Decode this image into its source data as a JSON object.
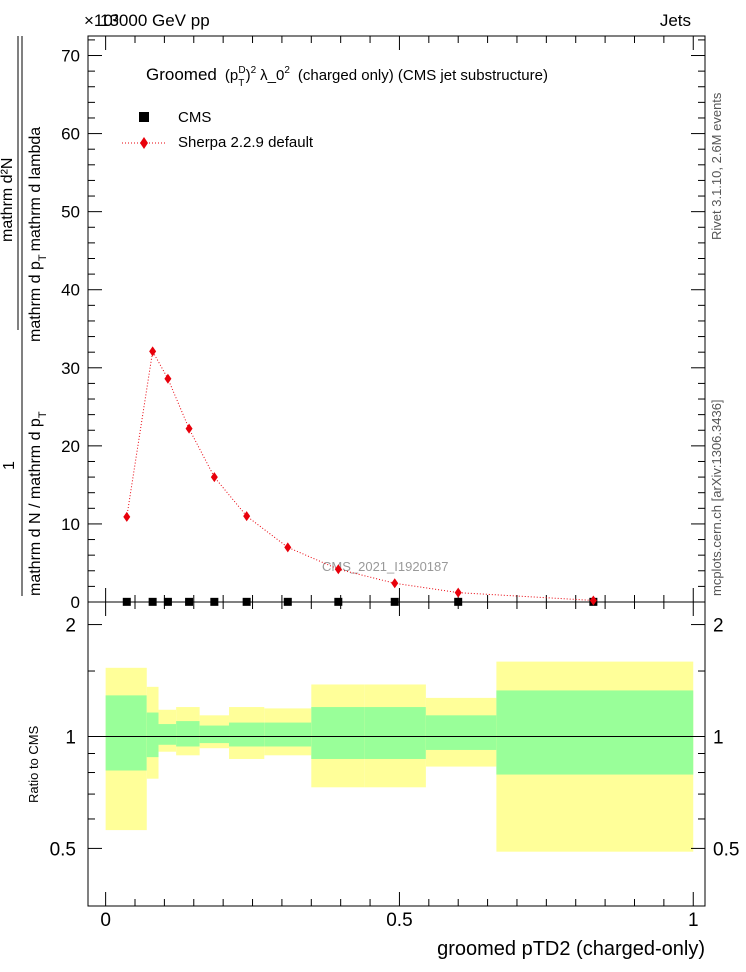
{
  "header": {
    "left": "13000 GeV pp",
    "right": "Jets",
    "exponent": "×10³"
  },
  "side": {
    "rivet": "Rivet 3.1.10,  2.6M events",
    "mcplots": "mcplots.cern.ch [arXiv:1306.3436]"
  },
  "watermark": "CMS_2021_I1920187",
  "chart_data": [
    {
      "type": "scatter",
      "title": "Groomed (p_T^D)^2 λ_0^2 (charged only) (CMS jet substructure)",
      "title_parts": {
        "prefix": "Groomed",
        "p": "(p",
        "sub": "T",
        "sup": "D",
        "close": ")",
        "sq": "2",
        "lambda": "λ_0",
        "suffix": "(charged only) (CMS jet substructure)"
      },
      "ylabel_parts": {
        "numerator": "1",
        "denominator": "mathrm d N / mathrm d p",
        "den_sub": "T",
        "inner_num": "mathrm d²N",
        "inner_den_a": "mathrm d p",
        "inner_den_sub": "T",
        "inner_den_b": "mathrm d lambda"
      },
      "y_scale_note": "values ×10³",
      "xlim": [
        -0.03,
        1.02
      ],
      "ylim": [
        0,
        72.5
      ],
      "x_ticks": [
        0,
        0.5,
        1
      ],
      "x_tick_labels": [
        "0",
        "0.5",
        "1"
      ],
      "y_ticks": [
        0,
        10,
        20,
        30,
        40,
        50,
        60,
        70
      ],
      "y_tick_labels": [
        "0",
        "10",
        "20",
        "30",
        "40",
        "50",
        "60",
        "70"
      ],
      "legend_position": "top-left",
      "series": [
        {
          "name": "CMS",
          "color": "#000000",
          "marker": "square",
          "x": [
            0.036,
            0.08,
            0.106,
            0.142,
            0.185,
            0.24,
            0.31,
            0.396,
            0.492,
            0.6,
            0.83
          ],
          "values": [
            0.02,
            0.02,
            0.02,
            0.02,
            0.02,
            0.02,
            0.02,
            0.02,
            0.02,
            0.02,
            0.02
          ]
        },
        {
          "name": "Sherpa 2.2.9 default",
          "color": "#e8000b",
          "marker": "diamond",
          "x": [
            0.036,
            0.08,
            0.106,
            0.142,
            0.185,
            0.24,
            0.31,
            0.396,
            0.492,
            0.6,
            0.83
          ],
          "values": [
            10.9,
            32.1,
            28.6,
            22.2,
            16.0,
            11.0,
            7.0,
            4.2,
            2.4,
            1.2,
            0.2
          ]
        }
      ]
    },
    {
      "type": "area",
      "ylabel": "Ratio to CMS",
      "xlabel": "groomed pTD2 (charged-only)",
      "xlim": [
        -0.03,
        1.02
      ],
      "ylim": [
        0.35,
        2.3
      ],
      "y_ticks": [
        0.5,
        1,
        2
      ],
      "y_tick_labels": [
        "0.5",
        "1",
        "2"
      ],
      "x_ticks": [
        0,
        0.5,
        1
      ],
      "x_tick_labels": [
        "0",
        "0.5",
        "1"
      ],
      "band_colors": {
        "inner": "#99ff99",
        "outer": "#ffff99"
      },
      "bins": [
        {
          "lo": 0.0,
          "hi": 0.07,
          "inner": [
            0.81,
            1.29
          ],
          "outer": [
            0.56,
            1.53
          ]
        },
        {
          "lo": 0.07,
          "hi": 0.09,
          "inner": [
            0.88,
            1.16
          ],
          "outer": [
            0.77,
            1.36
          ]
        },
        {
          "lo": 0.09,
          "hi": 0.12,
          "inner": [
            0.95,
            1.08
          ],
          "outer": [
            0.91,
            1.18
          ]
        },
        {
          "lo": 0.12,
          "hi": 0.16,
          "inner": [
            0.94,
            1.1
          ],
          "outer": [
            0.89,
            1.2
          ]
        },
        {
          "lo": 0.16,
          "hi": 0.21,
          "inner": [
            0.96,
            1.07
          ],
          "outer": [
            0.93,
            1.14
          ]
        },
        {
          "lo": 0.21,
          "hi": 0.27,
          "inner": [
            0.94,
            1.09
          ],
          "outer": [
            0.87,
            1.2
          ]
        },
        {
          "lo": 0.27,
          "hi": 0.35,
          "inner": [
            0.94,
            1.09
          ],
          "outer": [
            0.89,
            1.19
          ]
        },
        {
          "lo": 0.35,
          "hi": 0.44,
          "inner": [
            0.87,
            1.2
          ],
          "outer": [
            0.73,
            1.38
          ]
        },
        {
          "lo": 0.44,
          "hi": 0.545,
          "inner": [
            0.87,
            1.2
          ],
          "outer": [
            0.73,
            1.38
          ]
        },
        {
          "lo": 0.545,
          "hi": 0.665,
          "inner": [
            0.92,
            1.14
          ],
          "outer": [
            0.83,
            1.27
          ]
        },
        {
          "lo": 0.665,
          "hi": 1.0,
          "inner": [
            0.79,
            1.33
          ],
          "outer": [
            0.49,
            1.59
          ]
        }
      ]
    }
  ]
}
